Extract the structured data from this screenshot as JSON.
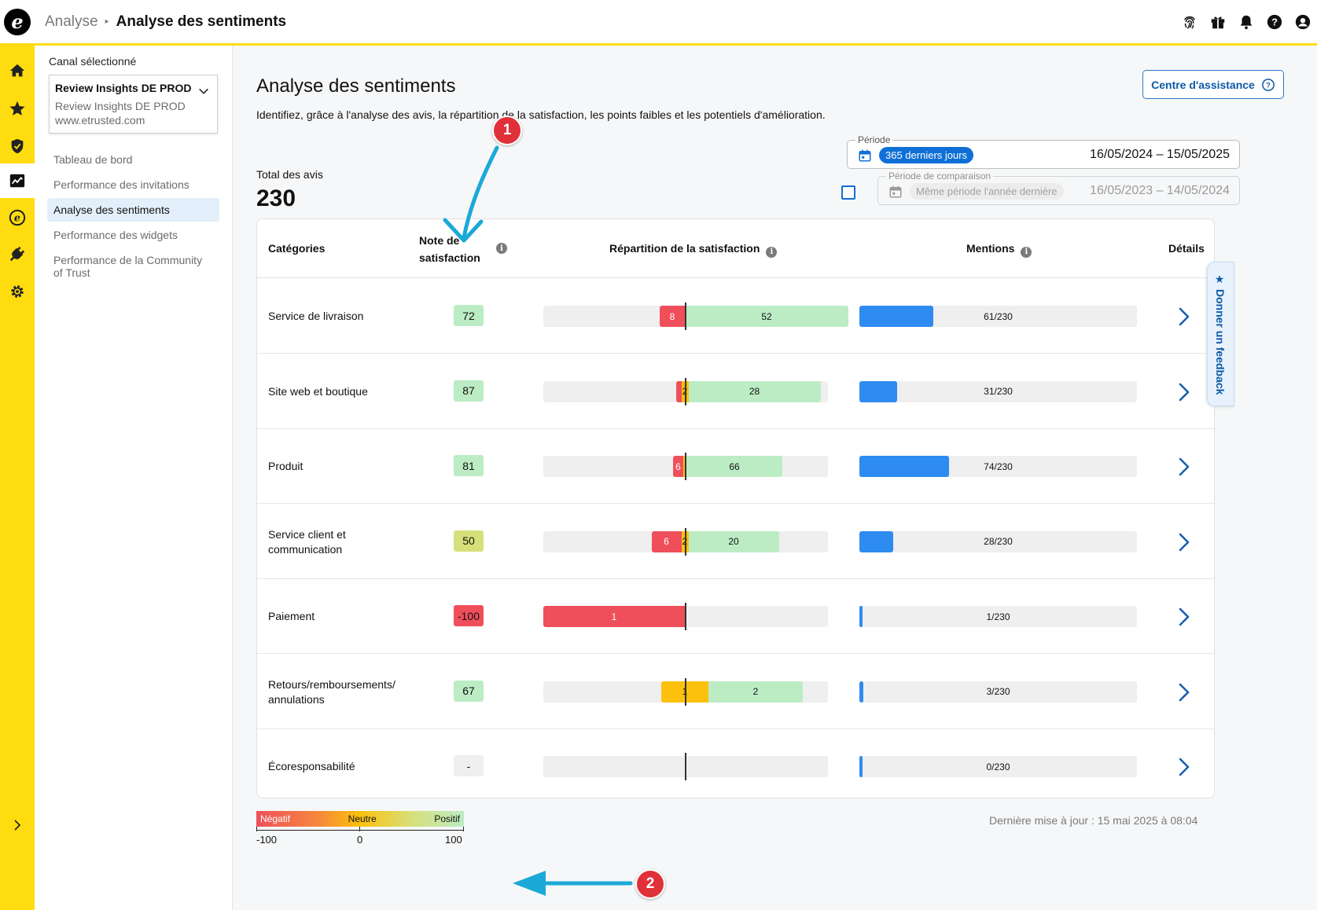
{
  "header": {
    "breadcrumb_parent": "Analyse",
    "breadcrumb_current": "Analyse des sentiments",
    "icons": [
      "fingerprint-icon",
      "gift-icon",
      "bell-icon",
      "help-icon",
      "user-icon"
    ]
  },
  "rail": {
    "items": [
      "home-icon",
      "star-icon",
      "shield-icon",
      "chart-icon",
      "etrusted-icon",
      "plug-icon",
      "gear-icon"
    ],
    "active": "chart-icon",
    "collapse_icon": "chevron-right-icon"
  },
  "sidebar": {
    "channel_label": "Canal sélectionné",
    "channel_name": "Review Insights DE PROD",
    "channel_sub": "Review Insights DE PROD",
    "channel_url": "www.etrusted.com",
    "nav": [
      {
        "label": "Tableau de bord"
      },
      {
        "label": "Performance des invitations"
      },
      {
        "label": "Analyse des sentiments"
      },
      {
        "label": "Performance des widgets"
      },
      {
        "label": "Performance de la Community of Trust"
      }
    ]
  },
  "main": {
    "title": "Analyse des sentiments",
    "description": "Identifiez, grâce à l'analyse des avis, la répartition de la satisfaction, les points faibles et les potentiels d'amélioration.",
    "help_button": "Centre d'assistance",
    "total_label": "Total des avis",
    "total_value": "230",
    "period": {
      "legend": "Période",
      "chip": "365 derniers jours",
      "range": "16/05/2024 – 15/05/2025"
    },
    "comparison": {
      "legend": "Période de comparaison",
      "chip": "Même période l'année dernière",
      "range": "16/05/2023 – 14/05/2024",
      "checked": false
    },
    "table": {
      "headers": {
        "category": "Catégories",
        "score": "Note de satisfaction",
        "distribution": "Répartition de la satisfaction",
        "mentions": "Mentions",
        "details": "Détails"
      },
      "rows": [
        {
          "category": "Service de livraison",
          "score": "72",
          "score_color": "#bcecc4",
          "neg": 8,
          "neu": 0,
          "pos": 52,
          "neg_label": "8",
          "neu_label": "",
          "pos_label": "52",
          "mentions": 61,
          "mentions_label": "61/230"
        },
        {
          "category": "Site web et boutique",
          "score": "87",
          "score_color": "#bcecc4",
          "neg": 1,
          "neu": 2,
          "pos": 28,
          "neg_label": "",
          "neu_label": "2",
          "pos_label": "28",
          "mentions": 31,
          "mentions_label": "31/230"
        },
        {
          "category": "Produit",
          "score": "81",
          "score_color": "#bcecc4",
          "neg": 6,
          "neu": 1,
          "pos": 66,
          "neg_label": "6",
          "neu_label": "",
          "pos_label": "66",
          "mentions": 74,
          "mentions_label": "74/230"
        },
        {
          "category": "Service client et communication",
          "score": "50",
          "score_color": "#d6e07a",
          "neg": 6,
          "neu": 2,
          "pos": 20,
          "neg_label": "6",
          "neu_label": "2",
          "pos_label": "20",
          "mentions": 28,
          "mentions_label": "28/230"
        },
        {
          "category": "Paiement",
          "score": "-100",
          "score_color": "#ef4f5b",
          "neg": 1,
          "neu": 0,
          "pos": 0,
          "neg_label": "1",
          "neu_label": "",
          "pos_label": "",
          "mentions": 1,
          "mentions_label": "1/230"
        },
        {
          "category": "Retours/remboursements/ annulations",
          "score": "67",
          "score_color": "#bcecc4",
          "neg": 0,
          "neu": 1,
          "pos": 2,
          "neg_label": "",
          "neu_label": "1",
          "pos_label": "2",
          "mentions": 3,
          "mentions_label": "3/230"
        },
        {
          "category": "Écoresponsabilité",
          "score": "-",
          "score_color": "#efefef",
          "neg": 0,
          "neu": 0,
          "pos": 0,
          "neg_label": "",
          "neu_label": "",
          "pos_label": "",
          "mentions": 0,
          "mentions_label": "0/230"
        }
      ]
    },
    "legend": {
      "negative": "Négatif",
      "neutral": "Neutre",
      "positive": "Positif",
      "min": "-100",
      "mid": "0",
      "max": "100"
    },
    "last_update": "Dernière mise à jour : 15 mai 2025 à 08:04",
    "feedback_tab": "Donner un feedback"
  },
  "annotations": {
    "badge_1": "1",
    "badge_2": "2"
  },
  "colors": {
    "brand_yellow": "#ffdc0f",
    "accent_blue": "#0f6fd6",
    "negative": "#ef4f5b",
    "neutral": "#fcc10d",
    "positive": "#bcecc4",
    "mentions": "#2e8cf0",
    "annotation_arrow": "#1ba9d8"
  }
}
